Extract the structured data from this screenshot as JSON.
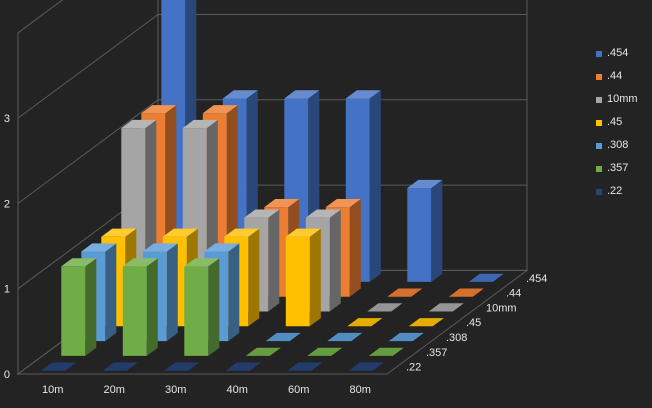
{
  "chart_data": {
    "type": "bar3d",
    "categories": [
      "10m",
      "20m",
      "30m",
      "40m",
      "60m",
      "80m"
    ],
    "depth_labels": [
      ".22",
      ".357",
      ".308",
      ".45",
      "10mm",
      ".44",
      ".454"
    ],
    "y_ticks": [
      "0",
      "1",
      "2",
      "3"
    ],
    "ylim": [
      0,
      4
    ],
    "series": [
      {
        "name": ".22",
        "color": "#264478",
        "values": [
          0,
          0,
          0,
          0,
          0,
          0
        ]
      },
      {
        "name": ".357",
        "color": "#70ad47",
        "values": [
          1.05,
          1.05,
          1.05,
          0,
          0,
          0
        ]
      },
      {
        "name": ".308",
        "color": "#5b9bd5",
        "values": [
          1.05,
          1.05,
          1.05,
          0,
          0,
          0
        ]
      },
      {
        "name": ".45",
        "color": "#ffc000",
        "values": [
          1.05,
          1.05,
          1.05,
          1.05,
          0,
          0
        ]
      },
      {
        "name": "10mm",
        "color": "#a5a5a5",
        "values": [
          2.15,
          2.15,
          1.1,
          1.1,
          0,
          0
        ]
      },
      {
        "name": ".44",
        "color": "#ed7d31",
        "values": [
          2.15,
          2.15,
          1.05,
          1.05,
          0,
          0
        ]
      },
      {
        "name": ".454",
        "color": "#4472c4",
        "values": [
          3.95,
          2.15,
          2.15,
          2.15,
          1.1,
          0
        ]
      }
    ],
    "legend": {
      "position": "right",
      "order": [
        ".454",
        ".44",
        "10mm",
        ".45",
        ".308",
        ".357",
        ".22"
      ]
    },
    "grid": true
  }
}
